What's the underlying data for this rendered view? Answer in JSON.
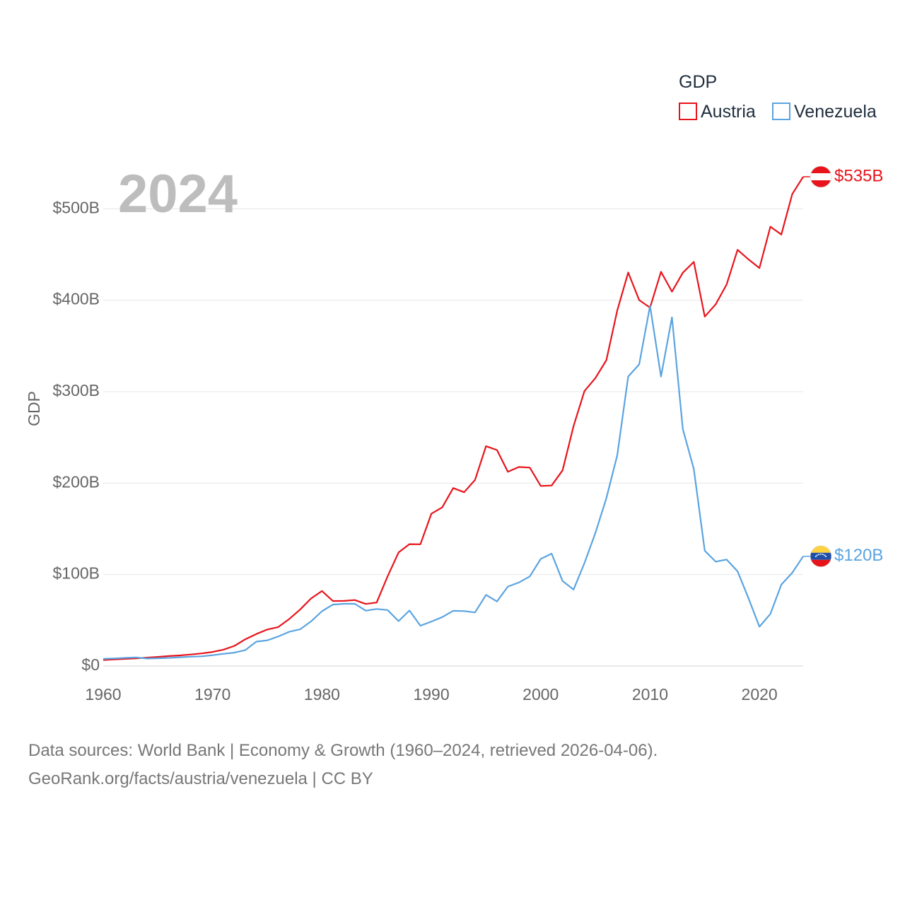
{
  "chart_data": {
    "type": "line",
    "title": "GDP",
    "ylabel": "GDP",
    "xlabel": "",
    "current_year_label": "2024",
    "x": [
      1960,
      1961,
      1962,
      1963,
      1964,
      1965,
      1966,
      1967,
      1968,
      1969,
      1970,
      1971,
      1972,
      1973,
      1974,
      1975,
      1976,
      1977,
      1978,
      1979,
      1980,
      1981,
      1982,
      1983,
      1984,
      1985,
      1986,
      1987,
      1988,
      1989,
      1990,
      1991,
      1992,
      1993,
      1994,
      1995,
      1996,
      1997,
      1998,
      1999,
      2000,
      2001,
      2002,
      2003,
      2004,
      2005,
      2006,
      2007,
      2008,
      2009,
      2010,
      2011,
      2012,
      2013,
      2014,
      2015,
      2016,
      2017,
      2018,
      2019,
      2020,
      2021,
      2022,
      2023,
      2024
    ],
    "xlim": [
      1960,
      2024
    ],
    "ylim": [
      0,
      535
    ],
    "y_unit": "billion USD",
    "x_ticks": [
      "1960",
      "1970",
      "1980",
      "1990",
      "2000",
      "2010",
      "2020"
    ],
    "y_ticks": [
      {
        "value": 0,
        "label": "$0"
      },
      {
        "value": 100,
        "label": "$100B"
      },
      {
        "value": 200,
        "label": "$200B"
      },
      {
        "value": 300,
        "label": "$300B"
      },
      {
        "value": 400,
        "label": "$400B"
      },
      {
        "value": 500,
        "label": "$500B"
      }
    ],
    "legend": {
      "title": "GDP",
      "position": "top-right"
    },
    "series": [
      {
        "name": "Austria",
        "color": "#e8141b",
        "flag": "austria-flag",
        "end_label": "$535B",
        "values": [
          6.6,
          7.3,
          7.8,
          8.4,
          9.2,
          10.0,
          10.9,
          11.6,
          12.6,
          13.8,
          15.4,
          17.9,
          22.0,
          29.3,
          35.0,
          39.9,
          42.6,
          51.3,
          61.7,
          73.8,
          82.0,
          71.1,
          71.2,
          72.1,
          67.9,
          69.4,
          98.0,
          124.2,
          133.3,
          133.1,
          166.5,
          173.5,
          194.6,
          190.0,
          203.6,
          240.4,
          236.2,
          212.4,
          217.6,
          217.0,
          196.9,
          197.4,
          214.0,
          262.3,
          300.6,
          314.9,
          334.4,
          388.7,
          430.3,
          400.2,
          391.9,
          431.1,
          409.4,
          430.1,
          441.9,
          382.1,
          395.6,
          417.2,
          455.1,
          444.6,
          435.2,
          480.4,
          471.8,
          516.0,
          535.0
        ]
      },
      {
        "name": "Venezuela",
        "color": "#5ba4e0",
        "flag": "venezuela-flag",
        "end_label": "$120B",
        "values": [
          7.8,
          8.3,
          8.9,
          9.4,
          8.2,
          8.5,
          8.9,
          9.6,
          10.2,
          10.6,
          11.8,
          13.4,
          14.6,
          17.5,
          26.7,
          28.1,
          32.3,
          37.4,
          40.1,
          48.8,
          59.9,
          67.2,
          68.0,
          68.0,
          60.5,
          62.4,
          61.2,
          49.1,
          60.7,
          44.1,
          48.6,
          53.5,
          60.4,
          60.1,
          58.6,
          77.8,
          70.6,
          86.9,
          91.3,
          97.98,
          117.1,
          122.9,
          92.9,
          83.6,
          112.5,
          145.5,
          183.5,
          230.4,
          316.5,
          329.8,
          393.8,
          316.5,
          381.3,
          258.9,
          215.5,
          126.0,
          114.1,
          116.4,
          103.5,
          74.0,
          43.0,
          57.0,
          89.0,
          102.0,
          120.0
        ]
      }
    ]
  },
  "source": {
    "line1": "Data sources: World Bank | Economy & Growth (1960–2024, retrieved 2026-04-06).",
    "line2": "GeoRank.org/facts/austria/venezuela | CC BY"
  }
}
